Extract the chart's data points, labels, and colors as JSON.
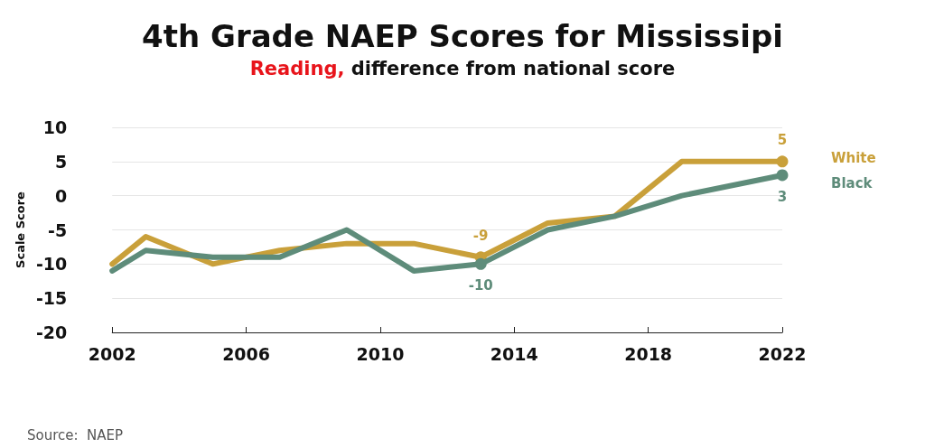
{
  "chart_data": {
    "type": "line",
    "title": "4th Grade NAEP Scores for Mississipi",
    "subtitle": "Reading, difference from national score",
    "ylabel": "Scale Score",
    "annotations": [
      "Source:  NAEP"
    ],
    "x": [
      2002,
      2003,
      2005,
      2007,
      2009,
      2011,
      2013,
      2015,
      2017,
      2019,
      2022
    ],
    "series": [
      {
        "name": "White",
        "color": "#c9a03a",
        "values": [
          -10,
          -6,
          -10,
          -8,
          -7,
          -7,
          -9,
          -4,
          -3,
          5,
          5
        ],
        "value_labels": [
          null,
          null,
          null,
          null,
          null,
          null,
          "-9",
          null,
          null,
          null,
          "5"
        ]
      },
      {
        "name": "Black",
        "color": "#5e8c7a",
        "values": [
          -11,
          -8,
          -9,
          -9,
          -5,
          -11,
          -10,
          -5,
          -3,
          0,
          3
        ],
        "value_labels": [
          null,
          null,
          null,
          null,
          null,
          null,
          "-10",
          null,
          null,
          null,
          "3"
        ]
      }
    ],
    "xlim": [
      2002,
      2022
    ],
    "xticks": [
      2002,
      2006,
      2010,
      2014,
      2018,
      2022
    ],
    "ylim": [
      -20,
      10
    ],
    "yticks": [
      -20,
      -15,
      -10,
      -5,
      0,
      5,
      10
    ],
    "grid": "y",
    "legend": false,
    "line_style": "solid"
  }
}
